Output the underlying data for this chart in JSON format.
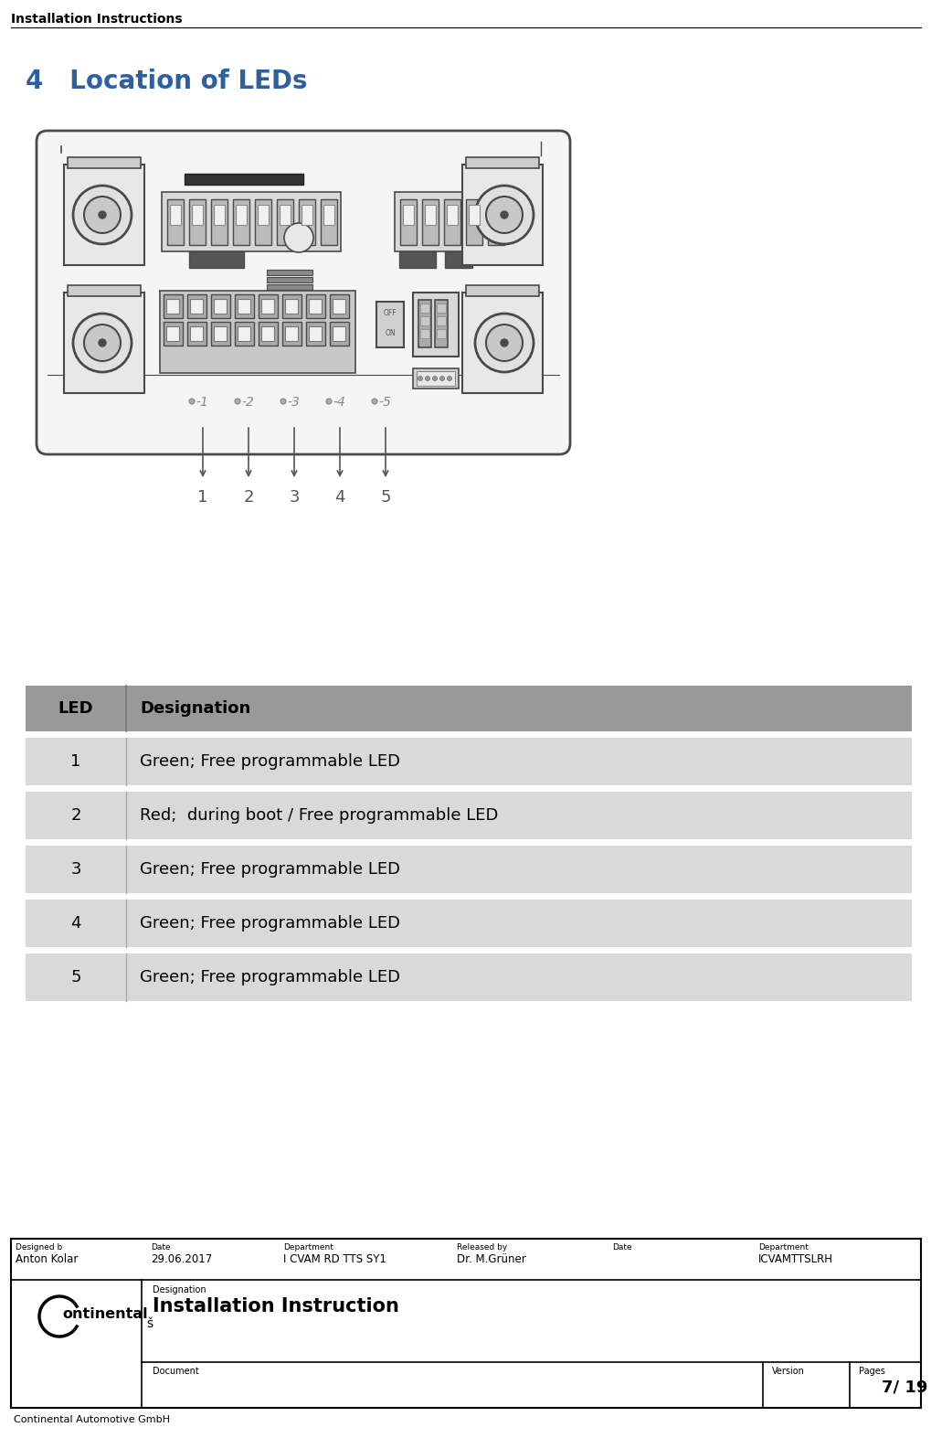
{
  "page_title": "Installation Instructions",
  "section_title": "4   Location of LEDs",
  "section_title_color": "#2E5FA3",
  "table_header": [
    "LED",
    "Designation"
  ],
  "table_rows": [
    [
      "1",
      "Green; Free programmable LED"
    ],
    [
      "2",
      "Red;  during boot / Free programmable LED"
    ],
    [
      "3",
      "Green; Free programmable LED"
    ],
    [
      "4",
      "Green; Free programmable LED"
    ],
    [
      "5",
      "Green; Free programmable LED"
    ]
  ],
  "header_bg": "#999999",
  "row_bg": "#d9d9d9",
  "footer_fields": {
    "designed_by_label": "Designed b",
    "designed_by_value": "Anton Kolar",
    "date_label": "Date",
    "date_value": "29.06.2017",
    "department_label": "Department",
    "department_value": "I CVAM RD TTS SY1",
    "released_by_label": "Released by",
    "released_by_value": "Dr. M.Grüner",
    "date2_label": "Date",
    "date2_value": "",
    "department2_label": "Department",
    "department2_value": "ICVAMTTSLRH",
    "designation_label": "Designation",
    "designation_value": "Installation Instruction",
    "document_label": "Document",
    "document_value": "",
    "version_label": "Version",
    "version_value": "",
    "pages_label": "Pages",
    "pages_value": "7/ 19"
  },
  "footer_company": "Continental Automotive GmbH",
  "bg_color": "#ffffff",
  "text_color": "#000000",
  "device_edge": "#4a4a4a",
  "device_face": "#f5f5f5",
  "connector_edge": "#555555",
  "connector_face": "#e0e0e0",
  "led_labels": [
    "-1",
    "-2",
    "-3",
    "-4",
    "-5"
  ],
  "led_numbers": [
    "1",
    "2",
    "3",
    "4",
    "5"
  ]
}
